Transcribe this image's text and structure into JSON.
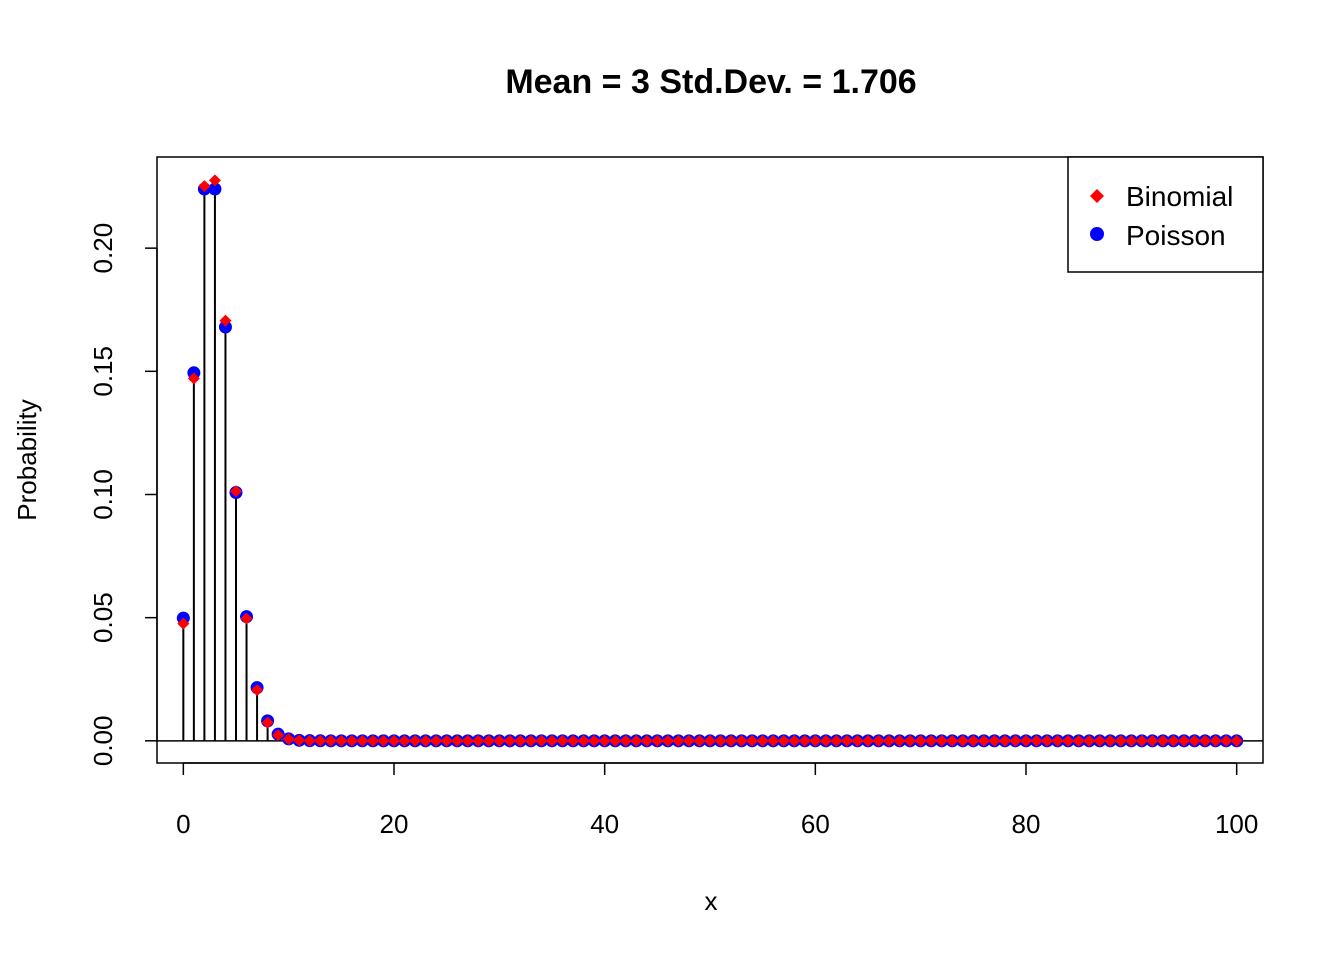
{
  "chart_data": {
    "type": "scatter",
    "title": "Mean = 3 Std.Dev. = 1.706",
    "xlabel": "x",
    "ylabel": "Probability",
    "xlim": [
      -2.5,
      102.5
    ],
    "ylim": [
      -0.009,
      0.237
    ],
    "x_ticks": [
      0,
      20,
      40,
      60,
      80,
      100
    ],
    "x_tick_labels": [
      "0",
      "20",
      "40",
      "60",
      "80",
      "100"
    ],
    "y_ticks": [
      0.0,
      0.05,
      0.1,
      0.15,
      0.2
    ],
    "y_tick_labels": [
      "0.00",
      "0.05",
      "0.10",
      "0.15",
      "0.20"
    ],
    "baseline": 0,
    "x": [
      0,
      1,
      2,
      3,
      4,
      5,
      6,
      7,
      8,
      9,
      10,
      11,
      12,
      13,
      14,
      15,
      16,
      17,
      18,
      19,
      20,
      21,
      22,
      23,
      24,
      25,
      26,
      27,
      28,
      29,
      30,
      31,
      32,
      33,
      34,
      35,
      36,
      37,
      38,
      39,
      40,
      41,
      42,
      43,
      44,
      45,
      46,
      47,
      48,
      49,
      50,
      51,
      52,
      53,
      54,
      55,
      56,
      57,
      58,
      59,
      60,
      61,
      62,
      63,
      64,
      65,
      66,
      67,
      68,
      69,
      70,
      71,
      72,
      73,
      74,
      75,
      76,
      77,
      78,
      79,
      80,
      81,
      82,
      83,
      84,
      85,
      86,
      87,
      88,
      89,
      90,
      91,
      92,
      93,
      94,
      95,
      96,
      97,
      98,
      99,
      100
    ],
    "series": [
      {
        "name": "Binomial",
        "marker": "diamond",
        "color": "#ff0000",
        "values": [
          0.0476,
          0.1471,
          0.2252,
          0.2275,
          0.1706,
          0.1013,
          0.0496,
          0.0206,
          0.0074,
          0.0023,
          0.0007,
          0.0002,
          4e-05,
          1e-05,
          0,
          0,
          0,
          0,
          0,
          0,
          0,
          0,
          0,
          0,
          0,
          0,
          0,
          0,
          0,
          0,
          0,
          0,
          0,
          0,
          0,
          0,
          0,
          0,
          0,
          0,
          0,
          0,
          0,
          0,
          0,
          0,
          0,
          0,
          0,
          0,
          0,
          0,
          0,
          0,
          0,
          0,
          0,
          0,
          0,
          0,
          0,
          0,
          0,
          0,
          0,
          0,
          0,
          0,
          0,
          0,
          0,
          0,
          0,
          0,
          0,
          0,
          0,
          0,
          0,
          0,
          0,
          0,
          0,
          0,
          0,
          0,
          0,
          0,
          0,
          0,
          0,
          0,
          0,
          0,
          0,
          0,
          0,
          0,
          0,
          0,
          0
        ]
      },
      {
        "name": "Poisson",
        "marker": "circle",
        "color": "#0000ff",
        "values": [
          0.0498,
          0.1494,
          0.224,
          0.224,
          0.168,
          0.1008,
          0.0504,
          0.0216,
          0.0081,
          0.0027,
          0.0008,
          0.0002,
          6e-05,
          1e-05,
          0,
          0,
          0,
          0,
          0,
          0,
          0,
          0,
          0,
          0,
          0,
          0,
          0,
          0,
          0,
          0,
          0,
          0,
          0,
          0,
          0,
          0,
          0,
          0,
          0,
          0,
          0,
          0,
          0,
          0,
          0,
          0,
          0,
          0,
          0,
          0,
          0,
          0,
          0,
          0,
          0,
          0,
          0,
          0,
          0,
          0,
          0,
          0,
          0,
          0,
          0,
          0,
          0,
          0,
          0,
          0,
          0,
          0,
          0,
          0,
          0,
          0,
          0,
          0,
          0,
          0,
          0,
          0,
          0,
          0,
          0,
          0,
          0,
          0,
          0,
          0,
          0,
          0,
          0,
          0,
          0,
          0,
          0,
          0,
          0,
          0,
          0
        ]
      }
    ],
    "legend": {
      "position": "top-right",
      "entries": [
        {
          "label": "Binomial",
          "marker": "diamond",
          "color": "#ff0000"
        },
        {
          "label": "Poisson",
          "marker": "circle",
          "color": "#0000ff"
        }
      ]
    },
    "grid": false
  }
}
